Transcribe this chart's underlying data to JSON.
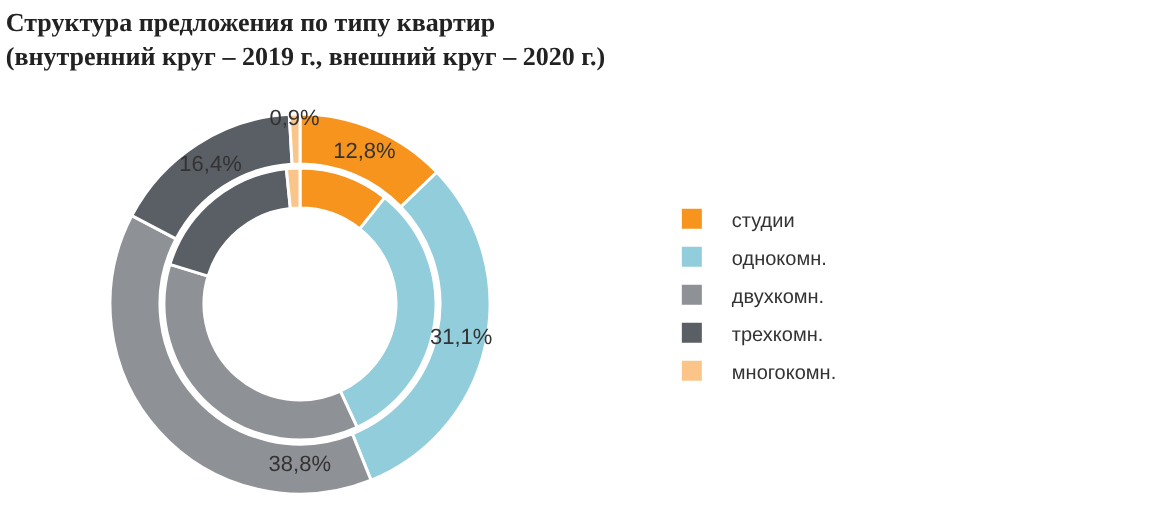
{
  "chart_data": {
    "type": "donut",
    "title": "Структура предложения по типу квартир\n(внутренний круг – 2019 г., внешний круг – 2020 г.)",
    "categories": [
      "студии",
      "однокомн.",
      "двухкомн.",
      "трехкомн.",
      "многокомн."
    ],
    "colors": [
      "#f7941d",
      "#92cddc",
      "#8e9195",
      "#5a5f66",
      "#fbc58a"
    ],
    "series": [
      {
        "values": [
          10.7,
          32.4,
          36.6,
          18.7,
          1.6
        ]
      },
      {
        "values": [
          12.8,
          31.1,
          38.8,
          16.4,
          0.9
        ],
        "value_labels": [
          "12,8%",
          "31,1%",
          "38,8%",
          "16,4%",
          "0,9%"
        ]
      }
    ],
    "legend": "right"
  }
}
